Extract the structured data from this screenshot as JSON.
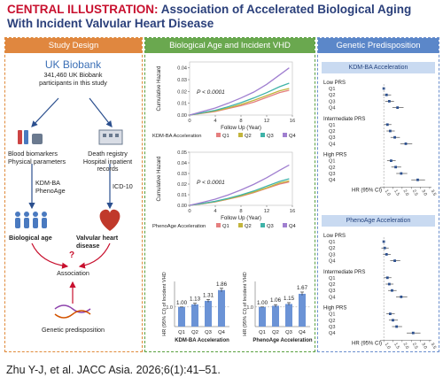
{
  "header": {
    "kicker": "CENTRAL ILLUSTRATION:",
    "title_line1": "Association of Accelerated Biological Aging",
    "title_line2": "With Incident Valvular Heart Disease"
  },
  "panels": {
    "study_design": {
      "title": "Study Design",
      "biobank_name": "UK Biobank",
      "biobank_line1": "341,460 UK Biobank",
      "biobank_line2": "participants in this study",
      "left_branch_line1": "Blood biomarkers",
      "left_branch_line2": "Physical parameters",
      "right_branch_line1": "Death registry",
      "right_branch_line2": "Hospital inpatient records",
      "method_line1": "KDM-BA",
      "method_line2": "PhenoAge",
      "icd_label": "ICD-10",
      "bio_age_label": "Biological age",
      "vhd_label": "Valvular heart disease",
      "question_mark": "?",
      "association_label": "Association",
      "genetic_label": "Genetic predisposition"
    },
    "bio_age": {
      "title": "Biological Age and Incident VHD",
      "km_ylabel": "Cumulative Hazard",
      "km_xlabel": "Follow Up (Year)",
      "km_plots": [
        {
          "p_label": "P < 0.0001",
          "legend_title": "KDM-BA Acceleration",
          "yticks": [
            "0.00",
            "0.01",
            "0.02",
            "0.03",
            "0.04"
          ],
          "xticks": [
            "0",
            "4",
            "8",
            "12",
            "16"
          ]
        },
        {
          "p_label": "P < 0.0001",
          "legend_title": "PhenoAge Acceleration",
          "yticks": [
            "0.00",
            "0.01",
            "0.02",
            "0.03",
            "0.04",
            "0.05"
          ],
          "xticks": [
            "0",
            "4",
            "8",
            "12",
            "16"
          ]
        }
      ],
      "legend_items": [
        "Q1",
        "Q2",
        "Q3",
        "Q4"
      ],
      "bar_ylabel": "HR (95% CI) of Incident VHD",
      "bar_ytick_label": "1.0",
      "bar_plots": [
        {
          "xlabel": "KDM-BA Acceleration",
          "values_text": [
            "1.00",
            "1.13",
            "1.31",
            "1.86"
          ]
        },
        {
          "xlabel": "PhenoAge Acceleration",
          "values_text": [
            "1.00",
            "1.06",
            "1.15",
            "1.67"
          ]
        }
      ]
    },
    "genetic": {
      "title": "Genetic Predisposition",
      "forest_plots": [
        {
          "subtitle": "KDM-BA Acceleration",
          "x_label": "HR (95% CI)",
          "x_ticks": [
            "1.0",
            "1.5",
            "2.0",
            "2.5",
            "3.0",
            "3.5"
          ]
        },
        {
          "subtitle": "PhenoAge Acceleration",
          "x_label": "HR (95% CI)",
          "x_ticks": [
            "1.0",
            "1.5",
            "2.0",
            "2.5",
            "3.0",
            "3.5"
          ]
        }
      ],
      "groups": [
        "Low PRS",
        "Intermediate PRS",
        "High PRS"
      ],
      "quartiles": [
        "Q1",
        "Q2",
        "Q3",
        "Q4"
      ]
    }
  },
  "footer": {
    "citation": "Zhu Y-J, et al. JACC Asia. 2026;6(1):41–51."
  },
  "colors": {
    "q1": "#e57f7f",
    "q2": "#c2b43c",
    "q3": "#3fb3a8",
    "q4": "#a07fd0",
    "bar": "#6b93d6"
  },
  "chart_data": [
    {
      "type": "line",
      "title": "",
      "xlabel": "Follow Up (Year)",
      "ylabel": "Cumulative Hazard",
      "xlim": [
        0,
        16
      ],
      "ylim": [
        0,
        0.045
      ],
      "annotation": "P < 0.0001",
      "legend_title": "KDM-BA Acceleration",
      "x": [
        0,
        2,
        4,
        6,
        8,
        10,
        12,
        14,
        15.5
      ],
      "series": [
        {
          "name": "Q1",
          "values": [
            0,
            0.0015,
            0.003,
            0.0055,
            0.008,
            0.011,
            0.015,
            0.019,
            0.021
          ]
        },
        {
          "name": "Q2",
          "values": [
            0,
            0.0017,
            0.0035,
            0.006,
            0.009,
            0.0125,
            0.0165,
            0.0205,
            0.0225
          ]
        },
        {
          "name": "Q3",
          "values": [
            0,
            0.002,
            0.004,
            0.007,
            0.0105,
            0.0145,
            0.019,
            0.024,
            0.027
          ]
        },
        {
          "name": "Q4",
          "values": [
            0,
            0.003,
            0.006,
            0.01,
            0.0145,
            0.0195,
            0.026,
            0.034,
            0.04
          ]
        }
      ]
    },
    {
      "type": "line",
      "title": "",
      "xlabel": "Follow Up (Year)",
      "ylabel": "Cumulative Hazard",
      "xlim": [
        0,
        16
      ],
      "ylim": [
        0,
        0.05
      ],
      "annotation": "P < 0.0001",
      "legend_title": "PhenoAge Acceleration",
      "x": [
        0,
        2,
        4,
        6,
        8,
        10,
        12,
        14,
        15.5
      ],
      "series": [
        {
          "name": "Q1",
          "values": [
            0,
            0.0015,
            0.0032,
            0.0058,
            0.0085,
            0.012,
            0.016,
            0.02,
            0.022
          ]
        },
        {
          "name": "Q2",
          "values": [
            0,
            0.0016,
            0.0034,
            0.006,
            0.009,
            0.0125,
            0.0165,
            0.021,
            0.023
          ]
        },
        {
          "name": "Q3",
          "values": [
            0,
            0.0018,
            0.0038,
            0.0066,
            0.0098,
            0.0135,
            0.018,
            0.0225,
            0.025
          ]
        },
        {
          "name": "Q4",
          "values": [
            0,
            0.0028,
            0.0058,
            0.0098,
            0.0145,
            0.0198,
            0.026,
            0.033,
            0.038
          ]
        }
      ]
    },
    {
      "type": "bar",
      "title": "",
      "xlabel": "KDM-BA Acceleration",
      "ylabel": "HR (95% CI) of Incident VHD",
      "categories": [
        "Q1",
        "Q2",
        "Q3",
        "Q4"
      ],
      "values": [
        1.0,
        1.13,
        1.31,
        1.86
      ],
      "error_low": [
        1.0,
        1.07,
        1.24,
        1.77
      ],
      "error_high": [
        1.0,
        1.19,
        1.38,
        1.95
      ],
      "ylim": [
        0,
        2.3
      ]
    },
    {
      "type": "bar",
      "title": "",
      "xlabel": "PhenoAge Acceleration",
      "ylabel": "HR (95% CI) of Incident VHD",
      "categories": [
        "Q1",
        "Q2",
        "Q3",
        "Q4"
      ],
      "values": [
        1.0,
        1.06,
        1.15,
        1.67
      ],
      "error_low": [
        1.0,
        1.0,
        1.09,
        1.59
      ],
      "error_high": [
        1.0,
        1.12,
        1.22,
        1.76
      ],
      "ylim": [
        0,
        2.3
      ]
    },
    {
      "type": "scatter",
      "title": "",
      "xlabel": "HR (95% CI)",
      "subtitle": "KDM-BA Acceleration",
      "xlim": [
        0.8,
        3.6
      ],
      "rows": [
        {
          "group": "Low PRS",
          "q": "Q1",
          "hr": 1.0,
          "lo": 1.0,
          "hi": 1.0
        },
        {
          "group": "Low PRS",
          "q": "Q2",
          "hr": 1.15,
          "lo": 0.95,
          "hi": 1.4
        },
        {
          "group": "Low PRS",
          "q": "Q3",
          "hr": 1.3,
          "lo": 1.08,
          "hi": 1.56
        },
        {
          "group": "Low PRS",
          "q": "Q4",
          "hr": 1.75,
          "lo": 1.47,
          "hi": 2.08
        },
        {
          "group": "Intermediate PRS",
          "q": "Q1",
          "hr": 1.2,
          "lo": 1.02,
          "hi": 1.42
        },
        {
          "group": "Intermediate PRS",
          "q": "Q2",
          "hr": 1.35,
          "lo": 1.15,
          "hi": 1.6
        },
        {
          "group": "Intermediate PRS",
          "q": "Q3",
          "hr": 1.6,
          "lo": 1.37,
          "hi": 1.88
        },
        {
          "group": "Intermediate PRS",
          "q": "Q4",
          "hr": 2.2,
          "lo": 1.9,
          "hi": 2.55
        },
        {
          "group": "High PRS",
          "q": "Q1",
          "hr": 1.4,
          "lo": 1.18,
          "hi": 1.65
        },
        {
          "group": "High PRS",
          "q": "Q2",
          "hr": 1.65,
          "lo": 1.41,
          "hi": 1.95
        },
        {
          "group": "High PRS",
          "q": "Q3",
          "hr": 1.95,
          "lo": 1.68,
          "hi": 2.28
        },
        {
          "group": "High PRS",
          "q": "Q4",
          "hr": 2.85,
          "lo": 2.5,
          "hi": 3.25
        }
      ]
    },
    {
      "type": "scatter",
      "title": "",
      "xlabel": "HR (95% CI)",
      "subtitle": "PhenoAge Acceleration",
      "xlim": [
        0.8,
        3.6
      ],
      "rows": [
        {
          "group": "Low PRS",
          "q": "Q1",
          "hr": 1.0,
          "lo": 1.0,
          "hi": 1.0
        },
        {
          "group": "Low PRS",
          "q": "Q2",
          "hr": 1.05,
          "lo": 0.87,
          "hi": 1.27
        },
        {
          "group": "Low PRS",
          "q": "Q3",
          "hr": 1.15,
          "lo": 0.96,
          "hi": 1.38
        },
        {
          "group": "Low PRS",
          "q": "Q4",
          "hr": 1.6,
          "lo": 1.35,
          "hi": 1.9
        },
        {
          "group": "Intermediate PRS",
          "q": "Q1",
          "hr": 1.2,
          "lo": 1.02,
          "hi": 1.42
        },
        {
          "group": "Intermediate PRS",
          "q": "Q2",
          "hr": 1.3,
          "lo": 1.1,
          "hi": 1.53
        },
        {
          "group": "Intermediate PRS",
          "q": "Q3",
          "hr": 1.45,
          "lo": 1.24,
          "hi": 1.7
        },
        {
          "group": "Intermediate PRS",
          "q": "Q4",
          "hr": 1.95,
          "lo": 1.67,
          "hi": 2.28
        },
        {
          "group": "High PRS",
          "q": "Q1",
          "hr": 1.35,
          "lo": 1.14,
          "hi": 1.6
        },
        {
          "group": "High PRS",
          "q": "Q2",
          "hr": 1.5,
          "lo": 1.28,
          "hi": 1.77
        },
        {
          "group": "High PRS",
          "q": "Q3",
          "hr": 1.7,
          "lo": 1.45,
          "hi": 2.0
        },
        {
          "group": "High PRS",
          "q": "Q4",
          "hr": 2.6,
          "lo": 2.25,
          "hi": 3.0
        }
      ]
    }
  ]
}
